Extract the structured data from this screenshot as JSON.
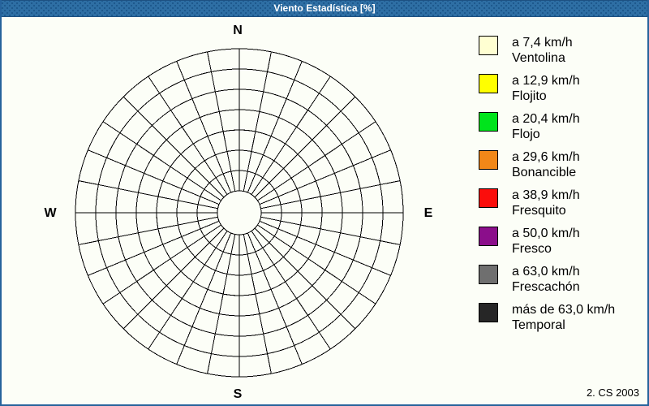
{
  "window": {
    "title": "Viento Estadística [%]",
    "footer": "2. CS 2003"
  },
  "chart_data": {
    "type": "wind-rose",
    "title": "Viento Estadística [%]",
    "unit": "%",
    "grid": {
      "rings": 7,
      "sectors": 32,
      "hole_radius_px": 27,
      "ring_spacing_px": 25,
      "outer_radius_px": 202,
      "grid_on": true
    },
    "series": [],
    "compass_labels": {
      "north": "N",
      "east": "E",
      "south": "S",
      "west": "W"
    },
    "legend_position": "right",
    "legend": [
      {
        "color": "#FFFFD2",
        "speed_label": "a 7,4 km/h",
        "name": "Ventolina"
      },
      {
        "color": "#FFFF00",
        "speed_label": "a 12,9 km/h",
        "name": "Flojito"
      },
      {
        "color": "#00E41C",
        "speed_label": "a 20,4 km/h",
        "name": "Flojo"
      },
      {
        "color": "#F28718",
        "speed_label": "a 29,6 km/h",
        "name": "Bonancible"
      },
      {
        "color": "#FB0D0C",
        "speed_label": "a 38,9 km/h",
        "name": "Fresquito"
      },
      {
        "color": "#8B0E8B",
        "speed_label": "a 50,0 km/h",
        "name": "Fresco"
      },
      {
        "color": "#6F6F6F",
        "speed_label": "a 63,0 km/h",
        "name": "Frescachón"
      },
      {
        "color": "#262626",
        "speed_label": "más de 63,0 km/h",
        "name": "Temporal"
      }
    ]
  }
}
